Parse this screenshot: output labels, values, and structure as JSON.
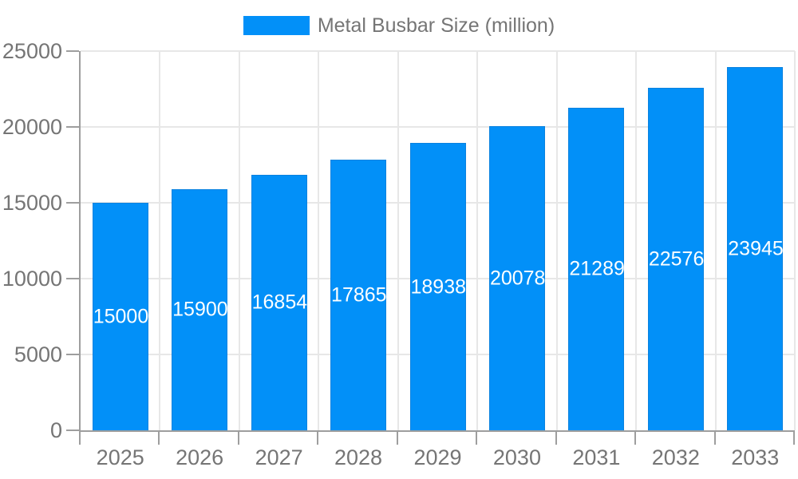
{
  "chart_data": {
    "type": "bar",
    "title": "",
    "legend": {
      "label": "Metal Busbar Size (million)",
      "position": "top"
    },
    "categories": [
      "2025",
      "2026",
      "2027",
      "2028",
      "2029",
      "2030",
      "2031",
      "2032",
      "2033"
    ],
    "values": [
      15000,
      15900,
      16854,
      17865,
      18938,
      20078,
      21289,
      22576,
      23945
    ],
    "bar_value_labels": [
      "15000",
      "15900",
      "16854",
      "17865",
      "18938",
      "20078",
      "21289",
      "22576",
      "23945"
    ],
    "xlabel": "",
    "ylabel": "",
    "ylim": [
      0,
      25000
    ],
    "yticks": [
      0,
      5000,
      10000,
      15000,
      20000,
      25000
    ],
    "grid": true,
    "colors": {
      "bar_fill": "#0290f8",
      "bar_border": "#0a82df",
      "bar_value_text": "#ffffff",
      "grid_line": "#e7e7e7",
      "axis_line": "#9e9e9e",
      "tick_text": "#757575",
      "background": "#ffffff"
    }
  }
}
